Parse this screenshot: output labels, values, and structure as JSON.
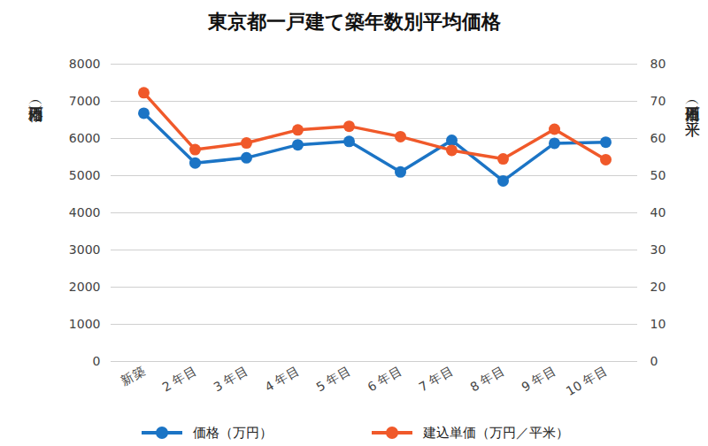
{
  "chart_data": {
    "type": "line",
    "title": "東京都一戸建て築年数別平均価格",
    "y_label": "価格（万円）",
    "y2_label": "単価（万円／平米）",
    "categories": [
      "新築",
      "2 年目",
      "3 年目",
      "4 年目",
      "5 年目",
      "6 年目",
      "7 年目",
      "8 年目",
      "9 年目",
      "10 年目"
    ],
    "series": [
      {
        "name": "価格（万円）",
        "color": "#1b74c5",
        "marker": "circle",
        "axis": "y",
        "values": [
          6680,
          5340,
          5480,
          5830,
          5920,
          5100,
          5950,
          4860,
          5870,
          5900
        ]
      },
      {
        "name": "建込単価（万円／平米）",
        "color": "#f0592a",
        "marker": "circle",
        "axis": "y2",
        "values": [
          72.3,
          57.0,
          58.8,
          62.3,
          63.3,
          60.5,
          56.8,
          54.5,
          62.5,
          54.3
        ]
      }
    ],
    "ylim": [
      0,
      8000
    ],
    "yticks": [
      0,
      1000,
      2000,
      3000,
      4000,
      5000,
      6000,
      7000,
      8000
    ],
    "y2lim": [
      0,
      80
    ],
    "y2ticks": [
      0,
      10,
      20,
      30,
      40,
      50,
      60,
      70,
      80
    ],
    "grid": true,
    "legend": "bottom"
  }
}
